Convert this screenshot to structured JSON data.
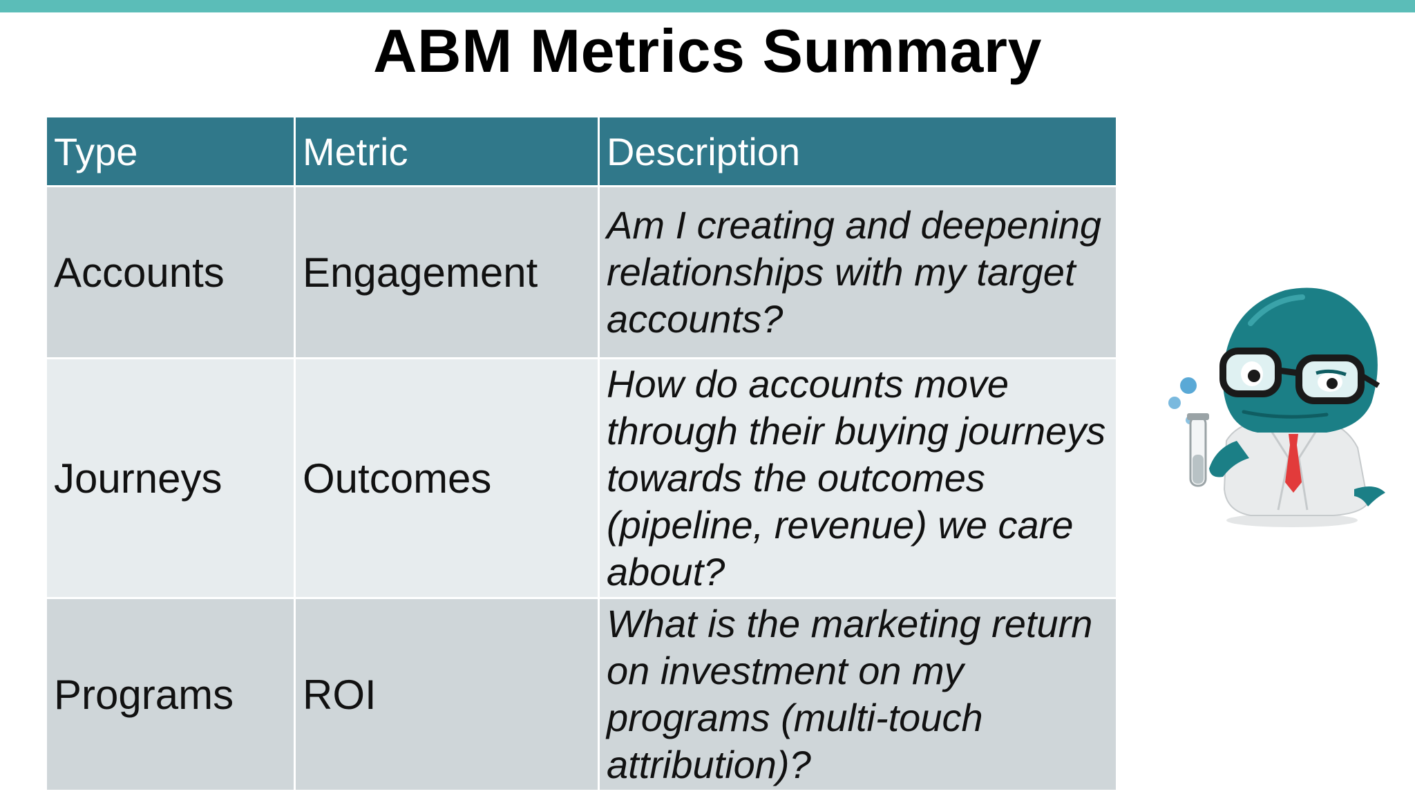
{
  "slide": {
    "title": "ABM Metrics Summary"
  },
  "table": {
    "headers": [
      "Type",
      "Metric",
      "Description"
    ],
    "rows": [
      {
        "type": "Accounts",
        "metric": "Engagement",
        "description": "Am I creating and deepening relationships with my target accounts?"
      },
      {
        "type": "Journeys",
        "metric": "Outcomes",
        "description": "How do accounts move through their buying journeys towards the outcomes (pipeline, revenue) we care about?"
      },
      {
        "type": "Programs",
        "metric": "ROI",
        "description": "What is the marketing return on investment on my programs (multi-touch attribution)?"
      }
    ]
  },
  "colors": {
    "accent_bar": "#5bbdb8",
    "header_bg": "#30788a",
    "row_dark": "#cfd6d9",
    "row_light": "#e7ecee",
    "mascot_body": "#1b7f86"
  },
  "mascot": {
    "icon": "scientist-mascot-icon"
  }
}
